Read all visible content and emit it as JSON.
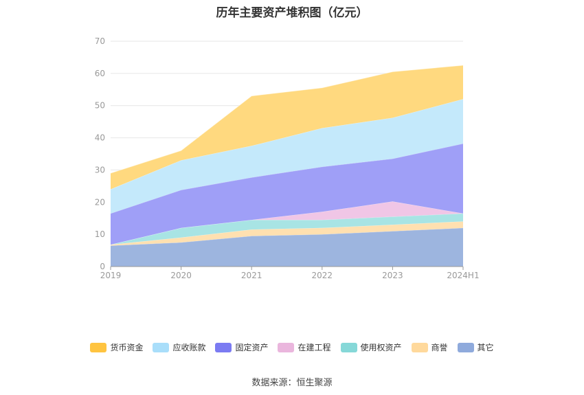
{
  "chart_data": {
    "type": "area",
    "stacked": true,
    "title": "历年主要资产堆积图（亿元）",
    "categories": [
      "2019",
      "2020",
      "2021",
      "2022",
      "2023",
      "2024H1"
    ],
    "ylim": [
      0,
      70
    ],
    "yticks": [
      0,
      10,
      20,
      30,
      40,
      50,
      60,
      70
    ],
    "grid": true,
    "legend_position": "bottom",
    "series": [
      {
        "name": "其它",
        "color": "#9db5df",
        "values": [
          6.5,
          7.5,
          9.5,
          10.0,
          11.0,
          12.0
        ]
      },
      {
        "name": "商誉",
        "color": "#ffe0b0",
        "values": [
          0.3,
          1.5,
          2.0,
          2.0,
          2.0,
          2.0
        ]
      },
      {
        "name": "使用权资产",
        "color": "#a8e4e4",
        "values": [
          0.0,
          3.0,
          3.0,
          2.5,
          2.5,
          2.5
        ]
      },
      {
        "name": "在建工程",
        "color": "#f0c6e6",
        "values": [
          0.0,
          0.0,
          0.0,
          2.5,
          4.7,
          0.0
        ]
      },
      {
        "name": "固定资产",
        "color": "#9f9ff7",
        "values": [
          9.7,
          11.8,
          13.2,
          14.0,
          13.3,
          21.7
        ]
      },
      {
        "name": "应收账款",
        "color": "#c4e9fb",
        "values": [
          7.5,
          9.2,
          9.8,
          12.0,
          12.7,
          13.8
        ]
      },
      {
        "name": "货币资金",
        "color": "#ffd97f",
        "values": [
          5.0,
          3.0,
          15.5,
          12.5,
          14.3,
          10.5
        ]
      }
    ],
    "legend": [
      {
        "name": "货币资金",
        "color": "#ffc440"
      },
      {
        "name": "应收账款",
        "color": "#a9defa"
      },
      {
        "name": "固定资产",
        "color": "#7b7bf2"
      },
      {
        "name": "在建工程",
        "color": "#eab6dd"
      },
      {
        "name": "使用权资产",
        "color": "#86d8d8"
      },
      {
        "name": "商誉",
        "color": "#ffd99c"
      },
      {
        "name": "其它",
        "color": "#8faadc"
      }
    ]
  },
  "source": "数据来源：恒生聚源"
}
